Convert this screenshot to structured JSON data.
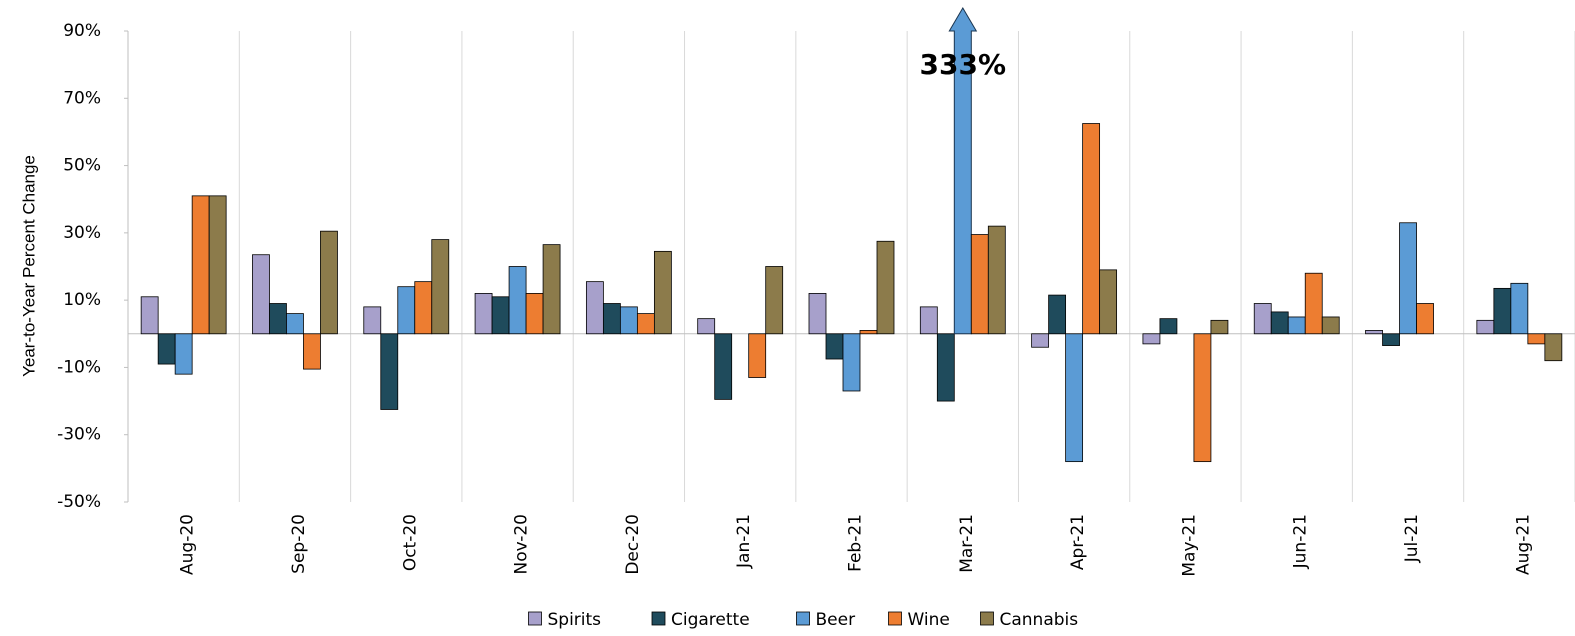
{
  "chart_data": {
    "type": "bar",
    "y_label": "Year-to-Year Percent Change",
    "categories": [
      "Aug-20",
      "Sep-20",
      "Oct-20",
      "Nov-20",
      "Dec-20",
      "Jan-21",
      "Feb-21",
      "Mar-21",
      "Apr-21",
      "May-21",
      "Jun-21",
      "Jul-21",
      "Aug-21"
    ],
    "series": [
      {
        "name": "Spirits",
        "color": "#a7a0cb",
        "values": [
          11,
          23.5,
          8,
          12,
          15.5,
          4.5,
          12,
          8,
          -4,
          -3,
          9,
          1,
          4
        ]
      },
      {
        "name": "Cigarette",
        "color": "#1f4b5c",
        "values": [
          -9,
          9,
          -22.5,
          11,
          9,
          -19.5,
          -7.5,
          -20,
          11.5,
          4.5,
          6.5,
          -3.5,
          13.5
        ]
      },
      {
        "name": "Beer",
        "color": "#5b9bd5",
        "values": [
          -12,
          6,
          14,
          20,
          8,
          null,
          -17,
          333,
          -38,
          null,
          5,
          33,
          15
        ],
        "value_labels": [
          null,
          null,
          null,
          null,
          null,
          null,
          null,
          "333%",
          null,
          null,
          null,
          null,
          null
        ]
      },
      {
        "name": "Wine",
        "color": "#ed7d31",
        "values": [
          41,
          -10.5,
          15.5,
          12,
          6,
          -13,
          1,
          29.5,
          62.5,
          -38,
          18,
          9,
          -3
        ]
      },
      {
        "name": "Cannabis",
        "color": "#8c7b4b",
        "values": [
          41,
          30.5,
          28,
          26.5,
          24.5,
          20,
          27.5,
          32,
          19,
          4,
          5,
          null,
          -8
        ]
      }
    ],
    "ylim": [
      -50,
      90
    ],
    "yticks": [
      {
        "value": -50,
        "label": "-50%"
      },
      {
        "value": -30,
        "label": "-30%"
      },
      {
        "value": -10,
        "label": "-10%"
      },
      {
        "value": 10,
        "label": "10%"
      },
      {
        "value": 30,
        "label": "30%"
      },
      {
        "value": 50,
        "label": "50%"
      },
      {
        "value": 70,
        "label": "70%"
      },
      {
        "value": 90,
        "label": "90%"
      }
    ],
    "legend": "bottom"
  }
}
